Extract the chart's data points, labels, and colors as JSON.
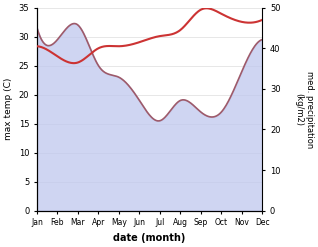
{
  "months": [
    "Jan",
    "Feb",
    "Mar",
    "Apr",
    "May",
    "Jun",
    "Jul",
    "Aug",
    "Sep",
    "Oct",
    "Nov",
    "Dec"
  ],
  "month_indices": [
    0,
    1,
    2,
    3,
    4,
    5,
    6,
    7,
    8,
    9,
    10,
    11
  ],
  "max_temp": [
    31.5,
    29.5,
    32.0,
    25.0,
    23.0,
    19.0,
    15.5,
    19.0,
    17.0,
    17.0,
    24.0,
    29.5
  ],
  "precipitation": [
    40.5,
    38.0,
    36.5,
    40.0,
    40.5,
    41.5,
    43.0,
    44.5,
    49.5,
    48.5,
    46.5,
    47.0
  ],
  "temp_color": "#9e5a6a",
  "precip_color": "#cc3333",
  "fill_color": "#c0c8ee",
  "fill_alpha": 0.75,
  "temp_ylim": [
    0,
    35
  ],
  "precip_ylim": [
    0,
    50
  ],
  "temp_yticks": [
    0,
    5,
    10,
    15,
    20,
    25,
    30,
    35
  ],
  "precip_yticks": [
    0,
    10,
    20,
    30,
    40,
    50
  ],
  "xlabel": "date (month)",
  "ylabel_left": "max temp (C)",
  "ylabel_right": "med. precipitation\n(kg/m2)",
  "bg_color": "#ffffff",
  "grid_color": "#dddddd",
  "spine_color": "#aaaaaa"
}
